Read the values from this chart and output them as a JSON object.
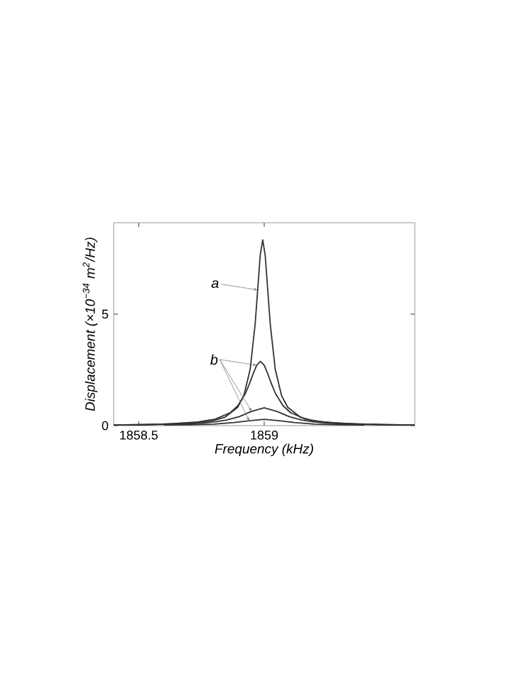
{
  "chart_data": {
    "type": "line",
    "xlabel": "Frequency (kHz)",
    "ylabel": "Displacement (×10$^{−34}$ m$^{2}$/Hz)",
    "xlim": [
      1858.4,
      1859.6
    ],
    "ylim": [
      0,
      9.1
    ],
    "xticks": [
      1858.5,
      1859
    ],
    "yticks": [
      0,
      5
    ],
    "grid": false,
    "marker": "none",
    "line_style": "solid",
    "series": [
      {
        "color": "#333333",
        "x": [
          1858.4,
          1858.5,
          1858.694,
          1858.794,
          1858.844,
          1858.894,
          1858.919,
          1858.944,
          1858.964,
          1858.974,
          1858.984,
          1858.994,
          1859.004,
          1859.014,
          1859.024,
          1859.044,
          1859.069,
          1859.094,
          1859.144,
          1859.194,
          1859.294,
          1859.494,
          1859.6
        ],
        "values": [
          0.03,
          0.04,
          0.1,
          0.22,
          0.38,
          0.82,
          1.35,
          2.52,
          4.56,
          6.09,
          7.63,
          8.33,
          7.63,
          6.09,
          4.56,
          2.52,
          1.35,
          0.82,
          0.38,
          0.22,
          0.1,
          0.04,
          0.03
        ]
      },
      {
        "color": "#333333",
        "x": [
          1858.4,
          1858.585,
          1858.735,
          1858.805,
          1858.865,
          1858.895,
          1858.925,
          1858.94,
          1858.955,
          1858.97,
          1858.985,
          1859,
          1859.015,
          1859.03,
          1859.045,
          1859.075,
          1859.105,
          1859.165,
          1859.235,
          1859.385,
          1859.6
        ],
        "values": [
          0.03,
          0.06,
          0.16,
          0.29,
          0.58,
          0.89,
          1.44,
          1.84,
          2.3,
          2.71,
          2.88,
          2.71,
          2.3,
          1.84,
          1.44,
          0.89,
          0.58,
          0.29,
          0.16,
          0.06,
          0.03
        ]
      },
      {
        "color": "#333333",
        "x": [
          1858.4,
          1858.5,
          1858.7,
          1858.8,
          1858.85,
          1858.9,
          1858.95,
          1859,
          1859.05,
          1859.1,
          1859.15,
          1859.2,
          1859.3,
          1859.5,
          1859.6
        ],
        "values": [
          0.03,
          0.03,
          0.08,
          0.16,
          0.25,
          0.4,
          0.64,
          0.8,
          0.64,
          0.4,
          0.25,
          0.16,
          0.08,
          0.03,
          0.02
        ]
      },
      {
        "color": "#333333",
        "x": [
          1858.6,
          1858.7,
          1858.8,
          1858.88,
          1858.94,
          1859,
          1859.06,
          1859.12,
          1859.2,
          1859.3,
          1859.4
        ],
        "values": [
          0.03,
          0.04,
          0.07,
          0.14,
          0.22,
          0.28,
          0.22,
          0.14,
          0.07,
          0.04,
          0.03
        ]
      }
    ],
    "annotations": [
      {
        "text": "a",
        "x": 1858.974,
        "y": 6.09
      },
      {
        "text": "b",
        "x": 1858.97,
        "y": 2.71
      }
    ]
  }
}
